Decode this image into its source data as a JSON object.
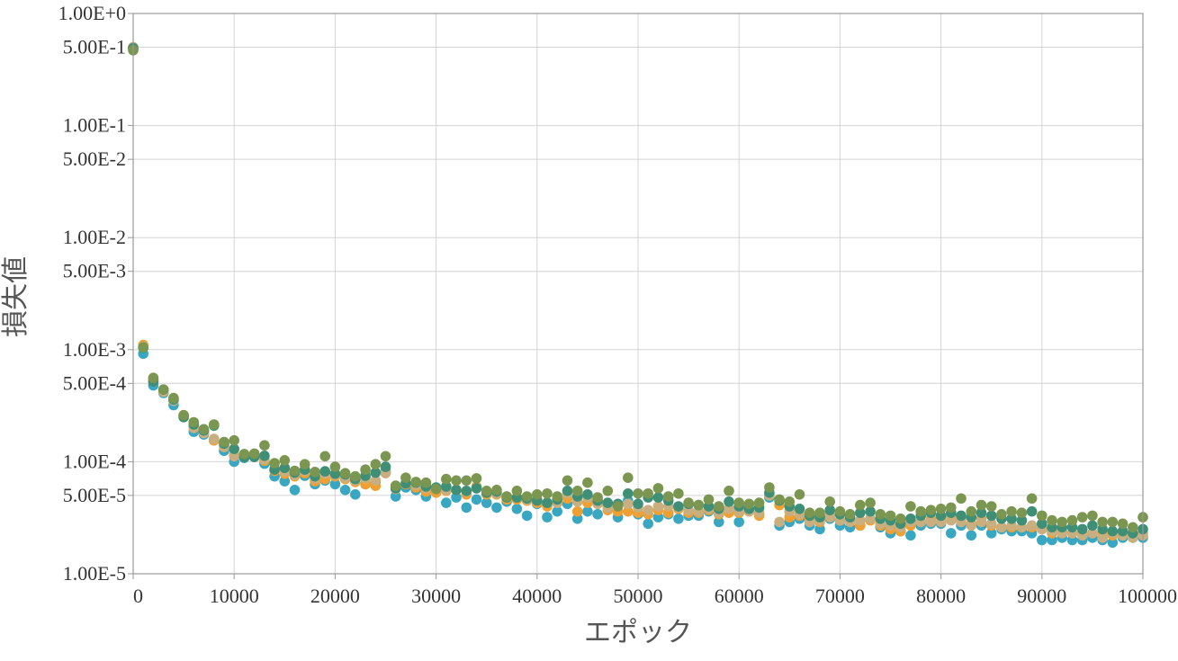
{
  "chart_data": {
    "type": "scatter",
    "title": "",
    "xlabel": "エポック",
    "ylabel": "損失値",
    "xlim": [
      0,
      100000
    ],
    "ylim": [
      1e-05,
      1
    ],
    "y_scale": "log",
    "grid": true,
    "legend": "none",
    "x_ticks": [
      0,
      10000,
      20000,
      30000,
      40000,
      50000,
      60000,
      70000,
      80000,
      90000,
      100000
    ],
    "x_tick_labels": [
      "0",
      "10000",
      "20000",
      "30000",
      "40000",
      "50000",
      "60000",
      "70000",
      "80000",
      "90000",
      "100000"
    ],
    "y_ticks": [
      1,
      0.5,
      0.1,
      0.05,
      0.01,
      0.005,
      0.001,
      0.0005,
      0.0001,
      5e-05,
      1e-05
    ],
    "y_tick_labels": [
      "1.00E+0",
      "5.00E-1",
      "1.00E-1",
      "5.00E-2",
      "1.00E-2",
      "5.00E-3",
      "1.00E-3",
      "5.00E-4",
      "1.00E-4",
      "5.00E-5",
      "1.00E-5"
    ],
    "x": [
      0,
      1000,
      2000,
      3000,
      4000,
      5000,
      6000,
      7000,
      8000,
      9000,
      10000,
      11000,
      12000,
      13000,
      14000,
      15000,
      16000,
      17000,
      18000,
      19000,
      20000,
      21000,
      22000,
      23000,
      24000,
      25000,
      26000,
      27000,
      28000,
      29000,
      30000,
      31000,
      32000,
      33000,
      34000,
      35000,
      36000,
      37000,
      38000,
      39000,
      40000,
      41000,
      42000,
      43000,
      44000,
      45000,
      46000,
      47000,
      48000,
      49000,
      50000,
      51000,
      52000,
      53000,
      54000,
      55000,
      56000,
      57000,
      58000,
      59000,
      60000,
      61000,
      62000,
      63000,
      64000,
      65000,
      66000,
      67000,
      68000,
      69000,
      70000,
      71000,
      72000,
      73000,
      74000,
      75000,
      76000,
      77000,
      78000,
      79000,
      80000,
      81000,
      82000,
      83000,
      84000,
      85000,
      86000,
      87000,
      88000,
      89000,
      90000,
      91000,
      92000,
      93000,
      94000,
      95000,
      96000,
      97000,
      98000,
      99000,
      100000
    ],
    "series": [
      {
        "color": "#3aa7c2",
        "values": [
          0.48,
          0.00092,
          0.00048,
          0.00041,
          0.00032,
          0.00025,
          0.000185,
          0.000175,
          0.000155,
          0.000125,
          0.0001,
          0.000108,
          0.000113,
          9.6e-05,
          7.4e-05,
          6.7e-05,
          5.6e-05,
          7.5e-05,
          6.3e-05,
          6.8e-05,
          6.3e-05,
          5.6e-05,
          5.1e-05,
          6.3e-05,
          6.6e-05,
          8.2e-05,
          4.9e-05,
          5.9e-05,
          5.6e-05,
          4.9e-05,
          5.5e-05,
          4.3e-05,
          4.8e-05,
          3.9e-05,
          4.6e-05,
          4.3e-05,
          3.9e-05,
          4.4e-05,
          3.8e-05,
          3.3e-05,
          4.2e-05,
          3.2e-05,
          3.6e-05,
          4.2e-05,
          3.1e-05,
          3.6e-05,
          3.4e-05,
          4.1e-05,
          3.2e-05,
          4.5e-05,
          3.4e-05,
          2.8e-05,
          3.2e-05,
          3.4e-05,
          3.1e-05,
          3.3e-05,
          3.3e-05,
          3.6e-05,
          2.9e-05,
          3.8e-05,
          2.9e-05,
          3.8e-05,
          3.4e-05,
          4.8e-05,
          2.7e-05,
          2.9e-05,
          3.1e-05,
          2.7e-05,
          2.5e-05,
          3.1e-05,
          2.7e-05,
          2.6e-05,
          2.7e-05,
          3.1e-05,
          2.6e-05,
          2.3e-05,
          2.4e-05,
          2.2e-05,
          2.7e-05,
          2.8e-05,
          2.8e-05,
          2.3e-05,
          2.7e-05,
          2.2e-05,
          2.7e-05,
          2.3e-05,
          2.5e-05,
          2.4e-05,
          2.4e-05,
          2.3e-05,
          2e-05,
          2e-05,
          2.1e-05,
          2e-05,
          2e-05,
          2.1e-05,
          2e-05,
          1.9e-05,
          2.1e-05,
          2.1e-05,
          2.1e-05
        ]
      },
      {
        "color": "#f0a030",
        "values": [
          0.5,
          0.0011,
          0.00053,
          0.00043,
          0.00036,
          0.00026,
          0.000205,
          0.000185,
          0.000155,
          0.00014,
          0.000115,
          0.000115,
          0.000115,
          0.000102,
          8.3e-05,
          7.8e-05,
          7.4e-05,
          7.9e-05,
          6.7e-05,
          7e-05,
          7.4e-05,
          7e-05,
          6.6e-05,
          6.3e-05,
          6.1e-05,
          8e-05,
          5.9e-05,
          6.3e-05,
          5.9e-05,
          5.4e-05,
          5.3e-05,
          5.5e-05,
          5.6e-05,
          5.1e-05,
          6e-05,
          5.1e-05,
          5.1e-05,
          4.6e-05,
          4.6e-05,
          4.5e-05,
          4.3e-05,
          4e-05,
          4.3e-05,
          4.7e-05,
          3.6e-05,
          4.3e-05,
          4.3e-05,
          3.7e-05,
          3.6e-05,
          3.6e-05,
          3.5e-05,
          3.4e-05,
          3.7e-05,
          3.5e-05,
          3.8e-05,
          3.5e-05,
          3.5e-05,
          3.7e-05,
          3.4e-05,
          3.5e-05,
          3.5e-05,
          3.6e-05,
          3.3e-05,
          5.1e-05,
          4.1e-05,
          3.2e-05,
          3.3e-05,
          3.1e-05,
          2.9e-05,
          3.3e-05,
          3e-05,
          3e-05,
          2.7e-05,
          3e-05,
          2.7e-05,
          2.5e-05,
          2.4e-05,
          2.7e-05,
          2.9e-05,
          3.1e-05,
          3.2e-05,
          3.3e-05,
          3.1e-05,
          2.8e-05,
          3.1e-05,
          2.7e-05,
          2.6e-05,
          2.6e-05,
          2.6e-05,
          2.6e-05,
          2.5e-05,
          2.3e-05,
          2.4e-05,
          2.3e-05,
          2.3e-05,
          2.3e-05,
          2.3e-05,
          2.2e-05,
          2.2e-05,
          2.1e-05,
          2.3e-05
        ]
      },
      {
        "color": "#c9ae80",
        "values": [
          0.5,
          0.00106,
          0.00055,
          0.00042,
          0.00035,
          0.000255,
          0.0002,
          0.00018,
          0.00016,
          0.000135,
          0.000112,
          0.000112,
          0.000115,
          0.000105,
          8.7e-05,
          8.2e-05,
          7.6e-05,
          8.3e-05,
          7.1e-05,
          7.8e-05,
          7.6e-05,
          7.2e-05,
          6.8e-05,
          7.1e-05,
          6.8e-05,
          7.9e-05,
          5.7e-05,
          6.4e-05,
          6.2e-05,
          5.8e-05,
          5.7e-05,
          5.6e-05,
          5.6e-05,
          5.4e-05,
          5.8e-05,
          5.4e-05,
          5.2e-05,
          4.9e-05,
          4.8e-05,
          4.6e-05,
          4.6e-05,
          4.3e-05,
          4.3e-05,
          5.2e-05,
          4.4e-05,
          4.8e-05,
          4.2e-05,
          3.9e-05,
          4e-05,
          4.2e-05,
          3.9e-05,
          3.7e-05,
          4e-05,
          4e-05,
          3.9e-05,
          3.7e-05,
          3.6e-05,
          3.8e-05,
          3.5e-05,
          3.8e-05,
          3.6e-05,
          3.6e-05,
          3.5e-05,
          5e-05,
          2.9e-05,
          3.6e-05,
          3.4e-05,
          2.9e-05,
          3e-05,
          3.2e-05,
          3e-05,
          2.9e-05,
          3e-05,
          3.1e-05,
          2.8e-05,
          2.7e-05,
          2.6e-05,
          2.9e-05,
          2.9e-05,
          2.9e-05,
          2.9e-05,
          3e-05,
          2.9e-05,
          2.7e-05,
          2.9e-05,
          2.8e-05,
          2.6e-05,
          2.7e-05,
          2.6e-05,
          2.7e-05,
          2.5e-05,
          2.4e-05,
          2.3e-05,
          2.3e-05,
          2.2e-05,
          2.3e-05,
          2.1e-05,
          2.3e-05,
          2.2e-05,
          2.1e-05,
          2.2e-05
        ]
      },
      {
        "color": "#3f8f77",
        "values": [
          0.49,
          0.00104,
          0.00052,
          0.00044,
          0.00036,
          0.00025,
          0.000215,
          0.00019,
          0.00021,
          0.000145,
          0.00013,
          0.00011,
          0.00011,
          0.000113,
          8.5e-05,
          8.8e-05,
          8e-05,
          8.5e-05,
          7.4e-05,
          8.2e-05,
          7.8e-05,
          7.7e-05,
          7e-05,
          7.5e-05,
          8e-05,
          9e-05,
          5.8e-05,
          6.4e-05,
          6.5e-05,
          6e-05,
          5.9e-05,
          6e-05,
          5.6e-05,
          5.5e-05,
          5.8e-05,
          5.3e-05,
          5.4e-05,
          4.8e-05,
          4.8e-05,
          4.7e-05,
          4.5e-05,
          4.3e-05,
          4.6e-05,
          5.5e-05,
          4.9e-05,
          5.1e-05,
          4.5e-05,
          4.3e-05,
          4.2e-05,
          5.2e-05,
          4.2e-05,
          4.8e-05,
          4.8e-05,
          4.5e-05,
          4e-05,
          4.2e-05,
          4.1e-05,
          4e-05,
          3.8e-05,
          4.4e-05,
          4e-05,
          3.8e-05,
          3.9e-05,
          5.3e-05,
          4.5e-05,
          4e-05,
          3.8e-05,
          3.3e-05,
          3.2e-05,
          3.7e-05,
          3.4e-05,
          3.2e-05,
          3.5e-05,
          3.6e-05,
          3.1e-05,
          3e-05,
          2.8e-05,
          3.1e-05,
          3.3e-05,
          3.5e-05,
          3.3e-05,
          3.5e-05,
          3.3e-05,
          3.2e-05,
          3.5e-05,
          3.3e-05,
          3.1e-05,
          3.1e-05,
          3e-05,
          3.6e-05,
          2.8e-05,
          2.6e-05,
          2.6e-05,
          2.6e-05,
          2.5e-05,
          2.7e-05,
          2.5e-05,
          2.4e-05,
          2.4e-05,
          2.3e-05,
          2.5e-05
        ]
      },
      {
        "color": "#7a9650",
        "values": [
          0.47,
          0.00105,
          0.00056,
          0.00044,
          0.00037,
          0.00026,
          0.000225,
          0.000195,
          0.000215,
          0.00015,
          0.000155,
          0.000117,
          0.000118,
          0.00014,
          9.7e-05,
          0.000103,
          8.3e-05,
          9.5e-05,
          8.1e-05,
          0.000112,
          9e-05,
          7.9e-05,
          7.4e-05,
          8.5e-05,
          9.5e-05,
          0.000112,
          6.1e-05,
          7.2e-05,
          6.6e-05,
          6.5e-05,
          5.7e-05,
          7e-05,
          6.8e-05,
          6.8e-05,
          7.1e-05,
          5.5e-05,
          5.6e-05,
          4.9e-05,
          5.5e-05,
          4.9e-05,
          5.1e-05,
          5.2e-05,
          4.9e-05,
          6.8e-05,
          5.5e-05,
          6.5e-05,
          4.8e-05,
          5.5e-05,
          4e-05,
          7.2e-05,
          5.2e-05,
          5.2e-05,
          5.8e-05,
          4.9e-05,
          5.2e-05,
          4.3e-05,
          4.1e-05,
          4.6e-05,
          4e-05,
          5.5e-05,
          4.3e-05,
          4.2e-05,
          4.3e-05,
          5.9e-05,
          4.6e-05,
          4.4e-05,
          5.1e-05,
          3.5e-05,
          3.5e-05,
          4.4e-05,
          3.6e-05,
          3.4e-05,
          4.1e-05,
          4.3e-05,
          3.4e-05,
          3.3e-05,
          3.1e-05,
          4e-05,
          3.6e-05,
          3.7e-05,
          3.8e-05,
          3.9e-05,
          4.7e-05,
          3.6e-05,
          4.1e-05,
          4e-05,
          3.4e-05,
          3.6e-05,
          3.5e-05,
          4.7e-05,
          3.3e-05,
          3e-05,
          2.9e-05,
          3e-05,
          3.2e-05,
          3.3e-05,
          2.9e-05,
          2.9e-05,
          2.8e-05,
          2.6e-05,
          3.2e-05
        ]
      }
    ]
  }
}
